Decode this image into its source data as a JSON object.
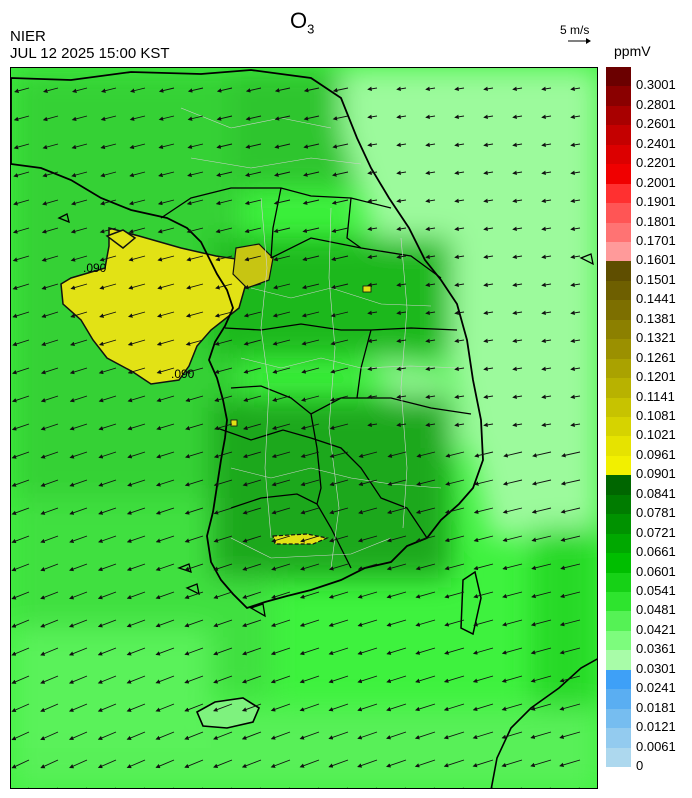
{
  "header": {
    "title_main": "O",
    "title_sub": "3",
    "agency": "NIER",
    "datetime": "JUL 12 2025 15:00 KST",
    "wind_reference": "5 m/s",
    "unit": "ppmV"
  },
  "map": {
    "contour_labels": [
      ".090",
      ".090"
    ],
    "colors": {
      "background_low": "#3ef23e",
      "background_mid": "#2ed12e",
      "east_sea": "#9afa9a",
      "high_o3": "#e2e215",
      "high_o3_dark": "#c7c512",
      "coastline": "#000000",
      "boundary": "#d0d0d0",
      "wind_arrow": "#111111"
    },
    "wind_flow": "northeasterly to easterly, arrows pointing south-west / west"
  },
  "legend": {
    "ticks": [
      "0.3001",
      "0.2801",
      "0.2601",
      "0.2401",
      "0.2201",
      "0.2001",
      "0.1901",
      "0.1801",
      "0.1701",
      "0.1601",
      "0.1501",
      "0.1441",
      "0.1381",
      "0.1321",
      "0.1261",
      "0.1201",
      "0.1141",
      "0.1081",
      "0.1021",
      "0.0961",
      "0.0901",
      "0.0841",
      "0.0781",
      "0.0721",
      "0.0661",
      "0.0601",
      "0.0541",
      "0.0481",
      "0.0421",
      "0.0361",
      "0.0301",
      "0.0241",
      "0.0181",
      "0.0121",
      "0.0061",
      "0"
    ],
    "colors": [
      "#6b0000",
      "#8a0000",
      "#a80000",
      "#c40000",
      "#dc0000",
      "#f00000",
      "#ff3030",
      "#ff5555",
      "#ff7373",
      "#ff9a9a",
      "#5f4e00",
      "#6e5f00",
      "#7d6f00",
      "#8c8000",
      "#9b9000",
      "#aaa200",
      "#b8b200",
      "#c7c300",
      "#d6d300",
      "#e6e300",
      "#f2f000",
      "#006600",
      "#007c00",
      "#009200",
      "#00a800",
      "#00be00",
      "#16d116",
      "#2ee42e",
      "#55f255",
      "#7dfc7d",
      "#a8fca8",
      "#3ea0f7",
      "#5aaef2",
      "#76bdf0",
      "#93cbef",
      "#add8ee"
    ]
  }
}
